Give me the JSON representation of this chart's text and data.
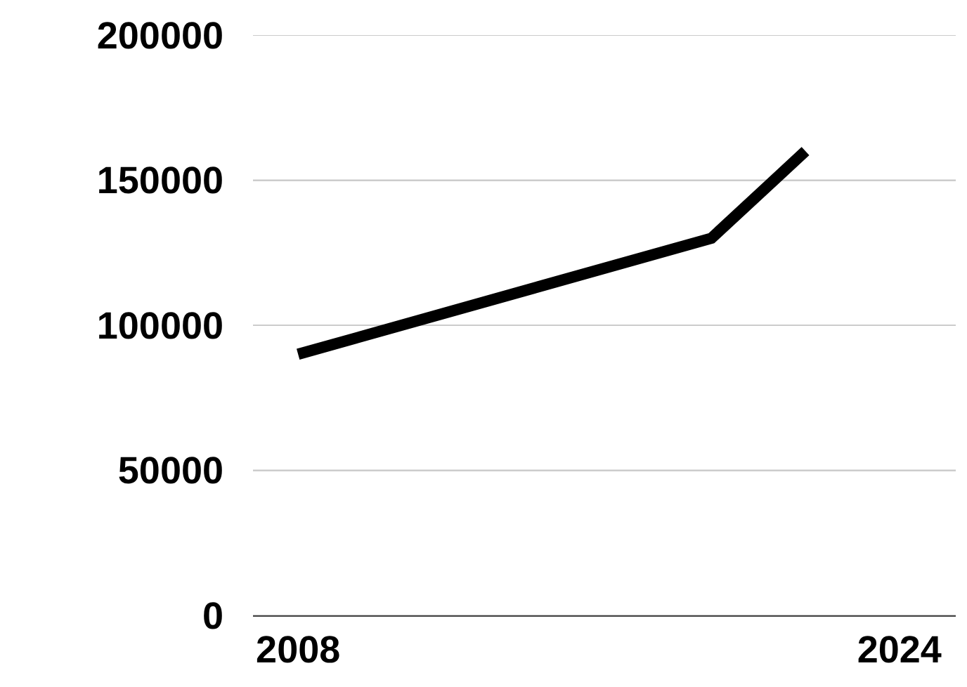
{
  "chart_data": {
    "type": "line",
    "x": [
      2008,
      2019,
      2021.5
    ],
    "series": [
      {
        "color": "#000000",
        "values": [
          90000,
          130000,
          160000
        ]
      }
    ],
    "xlim": [
      2006.8,
      2025.5
    ],
    "xticks": [
      2008,
      2024
    ],
    "ylim": [
      0,
      200000
    ],
    "yticks": [
      0,
      50000,
      100000,
      150000,
      200000
    ],
    "grid": "y",
    "marker": "none",
    "line_style": "solid"
  }
}
